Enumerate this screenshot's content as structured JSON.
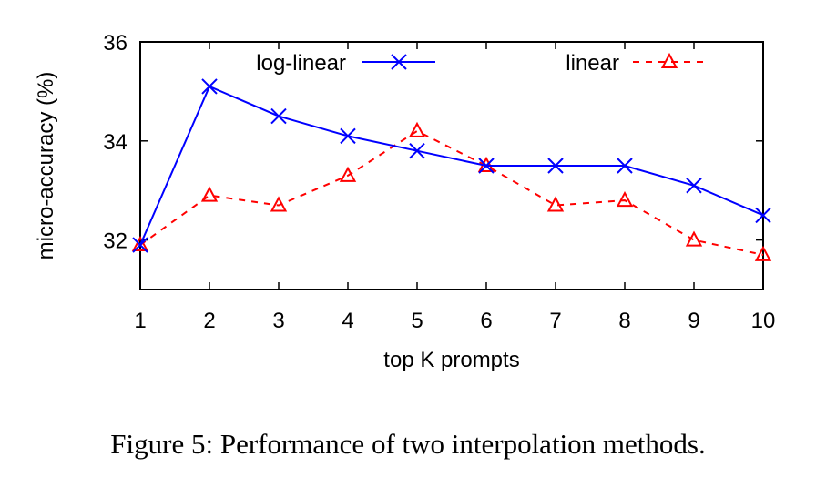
{
  "chart_data": {
    "type": "line",
    "title": "",
    "xlabel": "top K prompts",
    "ylabel": "micro-accuracy (%)",
    "x": [
      1,
      2,
      3,
      4,
      5,
      6,
      7,
      8,
      9,
      10
    ],
    "xticks": [
      "1",
      "2",
      "3",
      "4",
      "5",
      "6",
      "7",
      "8",
      "9",
      "10"
    ],
    "yticks": [
      "32",
      "34",
      "36"
    ],
    "ytick_values": [
      32,
      34,
      36
    ],
    "xlim": [
      1,
      10
    ],
    "ylim": [
      31,
      36
    ],
    "grid": false,
    "legend_placement": "top",
    "series": [
      {
        "name": "log-linear",
        "color": "#0000ff",
        "marker": "x",
        "dash": "solid",
        "values": [
          31.9,
          35.1,
          34.5,
          34.1,
          33.8,
          33.5,
          33.5,
          33.5,
          33.1,
          32.5
        ]
      },
      {
        "name": "linear",
        "color": "#ff0000",
        "marker": "triangle",
        "dash": "dashed",
        "values": [
          31.9,
          32.9,
          32.7,
          33.3,
          34.2,
          33.5,
          32.7,
          32.8,
          32.0,
          31.7
        ]
      }
    ]
  },
  "caption": "Figure 5: Performance of two interpolation methods."
}
